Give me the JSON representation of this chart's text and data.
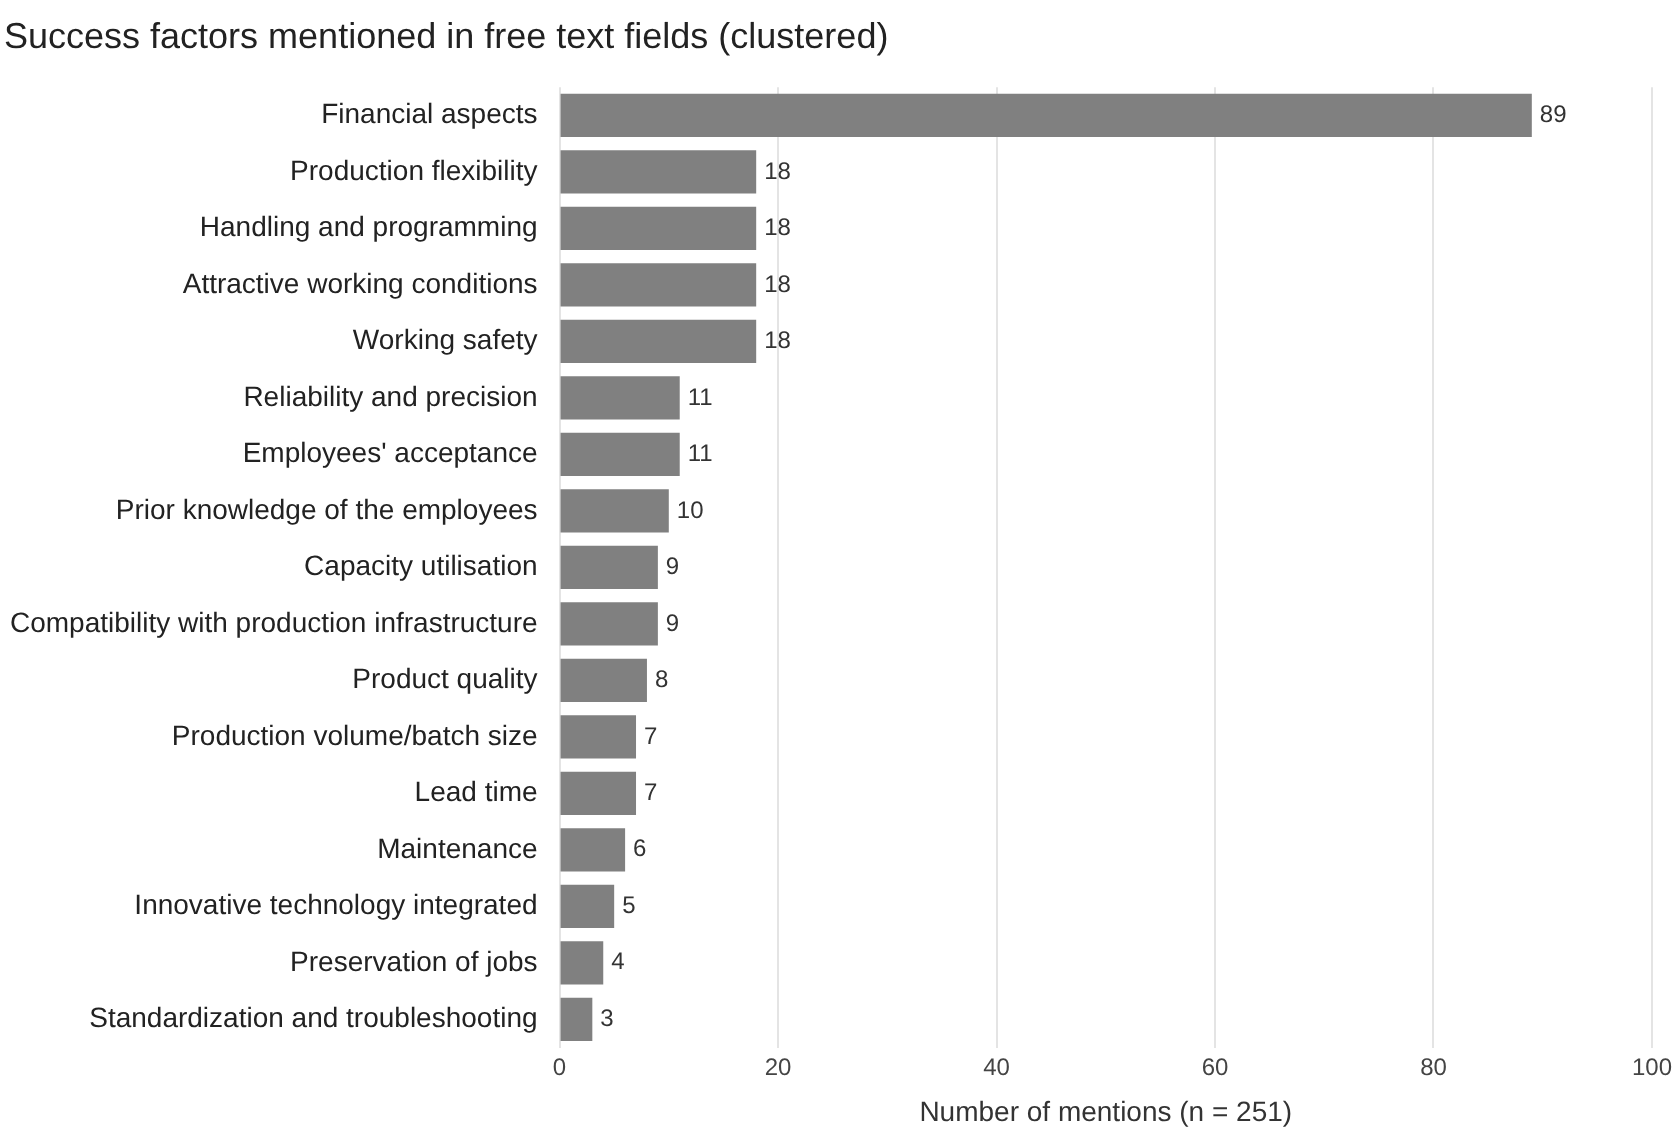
{
  "chart_data": {
    "type": "bar",
    "orientation": "horizontal",
    "title": "Success factors mentioned in free text fields (clustered)",
    "xlabel": "Number of mentions (n = 251)",
    "categories": [
      "Financial aspects",
      "Production flexibility",
      "Handling and programming",
      "Attractive working conditions",
      "Working safety",
      "Reliability and precision",
      "Employees' acceptance",
      "Prior knowledge of the employees",
      "Capacity utilisation",
      "Compatibility with production infrastructure",
      "Product quality",
      "Production volume/batch size",
      "Lead time",
      "Maintenance",
      "Innovative technology integrated",
      "Preservation of jobs",
      "Standardization and troubleshooting"
    ],
    "values": [
      89,
      18,
      18,
      18,
      18,
      11,
      11,
      10,
      9,
      9,
      8,
      7,
      7,
      6,
      5,
      4,
      3
    ],
    "color": "#808080",
    "xlim": [
      0,
      100
    ],
    "xticks": [
      0,
      20,
      40,
      60,
      80,
      100
    ],
    "grid": "x",
    "data_labels": true,
    "legend": false
  }
}
